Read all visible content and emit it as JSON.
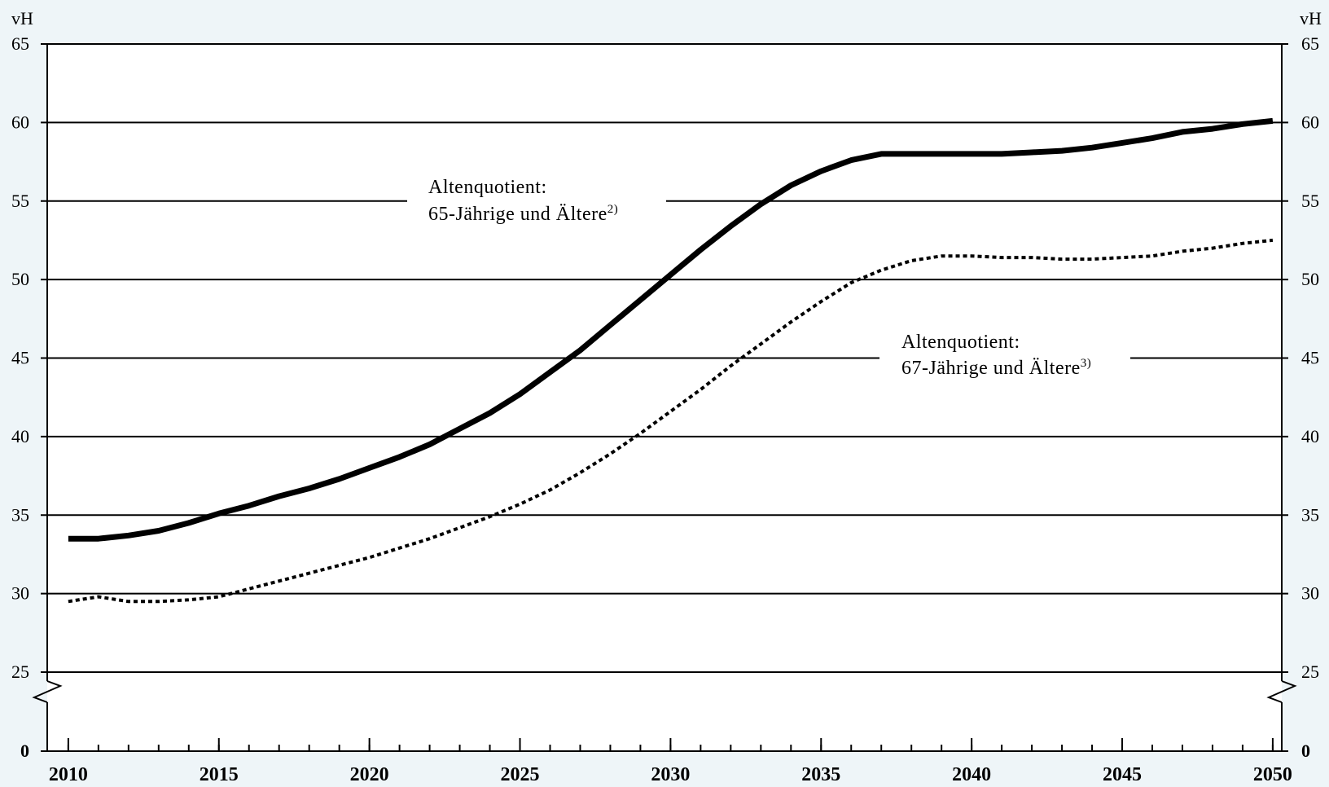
{
  "chart_data": {
    "type": "line",
    "unit_left": "vH",
    "unit_right": "vH",
    "x": [
      2010,
      2011,
      2012,
      2013,
      2014,
      2015,
      2016,
      2017,
      2018,
      2019,
      2020,
      2021,
      2022,
      2023,
      2024,
      2025,
      2026,
      2027,
      2028,
      2029,
      2030,
      2031,
      2032,
      2033,
      2034,
      2035,
      2036,
      2037,
      2038,
      2039,
      2040,
      2041,
      2042,
      2043,
      2044,
      2045,
      2046,
      2047,
      2048,
      2049,
      2050
    ],
    "xlim": [
      2009.3,
      2050.3
    ],
    "ylim_display": [
      0,
      65
    ],
    "axis_break": "between 0 and 25",
    "x_ticks": [
      "2010",
      "2015",
      "2020",
      "2025",
      "2030",
      "2035",
      "2040",
      "2045",
      "2050"
    ],
    "y_ticks": [
      "0",
      "25",
      "30",
      "35",
      "40",
      "45",
      "50",
      "55",
      "60",
      "65"
    ],
    "grid": true,
    "series": [
      {
        "style": "solid",
        "values": [
          33.5,
          33.5,
          33.7,
          34.0,
          34.5,
          35.1,
          35.6,
          36.2,
          36.7,
          37.3,
          38.0,
          38.7,
          39.5,
          40.5,
          41.5,
          42.7,
          44.1,
          45.5,
          47.1,
          48.7,
          50.3,
          51.9,
          53.4,
          54.8,
          56.0,
          56.9,
          57.6,
          58.0,
          58.0,
          58.0,
          58.0,
          58.0,
          58.1,
          58.2,
          58.4,
          58.7,
          59.0,
          59.4,
          59.6,
          59.9,
          60.1
        ]
      },
      {
        "style": "dotted",
        "values": [
          29.5,
          29.8,
          29.5,
          29.5,
          29.6,
          29.8,
          30.3,
          30.8,
          31.3,
          31.8,
          32.3,
          32.9,
          33.5,
          34.2,
          34.9,
          35.7,
          36.6,
          37.7,
          38.9,
          40.2,
          41.6,
          43.0,
          44.5,
          45.9,
          47.3,
          48.6,
          49.8,
          50.6,
          51.2,
          51.5,
          51.5,
          51.4,
          51.4,
          51.3,
          51.3,
          51.4,
          51.5,
          51.8,
          52.0,
          52.3,
          52.5
        ]
      }
    ],
    "annotations": [
      {
        "line1": "Altenquotient:",
        "line2": "65-Jährige und Ältere",
        "sup": "2)"
      },
      {
        "line1": "Altenquotient:",
        "line2": "67-Jährige und Ältere",
        "sup": "3)"
      }
    ]
  }
}
